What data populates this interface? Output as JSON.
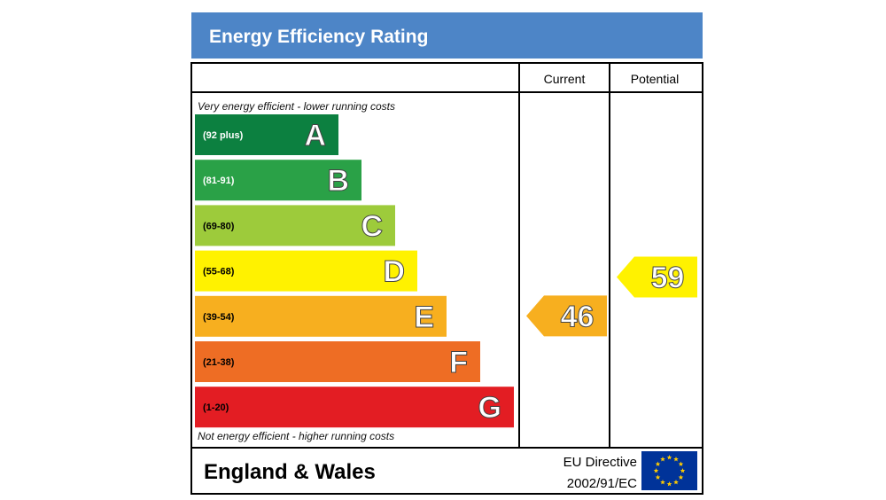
{
  "chart_data": {
    "type": "bar",
    "title": "Energy Efficiency Rating",
    "columns": [
      "Current",
      "Potential"
    ],
    "top_note": "Very energy efficient - lower running costs",
    "bottom_note": "Not energy efficient - higher running costs",
    "bands": [
      {
        "letter": "A",
        "range": "(92 plus)",
        "min": 92,
        "max": 100,
        "color": "#0c8040",
        "range_color": "#ffffff"
      },
      {
        "letter": "B",
        "range": "(81-91)",
        "min": 81,
        "max": 91,
        "color": "#2aa147",
        "range_color": "#ffffff"
      },
      {
        "letter": "C",
        "range": "(69-80)",
        "min": 69,
        "max": 80,
        "color": "#9dcb3b",
        "range_color": "#000000"
      },
      {
        "letter": "D",
        "range": "(55-68)",
        "min": 55,
        "max": 68,
        "color": "#fff200",
        "range_color": "#000000"
      },
      {
        "letter": "E",
        "range": "(39-54)",
        "min": 39,
        "max": 54,
        "color": "#f7af1f",
        "range_color": "#000000"
      },
      {
        "letter": "F",
        "range": "(21-38)",
        "min": 21,
        "max": 38,
        "color": "#ee6d24",
        "range_color": "#000000"
      },
      {
        "letter": "G",
        "range": "(1-20)",
        "min": 1,
        "max": 20,
        "color": "#e31d23",
        "range_color": "#000000"
      }
    ],
    "ratings": [
      {
        "column": "Current",
        "value": 46,
        "label": "46",
        "color": "#f7af1f"
      },
      {
        "column": "Potential",
        "value": 59,
        "label": "59",
        "color": "#fff200"
      }
    ],
    "footer": {
      "region": "England & Wales",
      "directive_line1": "EU Directive",
      "directive_line2": "2002/91/EC"
    },
    "colors": {
      "title_bar": "#4d85c7",
      "eu_flag": "#003399",
      "eu_stars": "#ffcc00"
    }
  }
}
